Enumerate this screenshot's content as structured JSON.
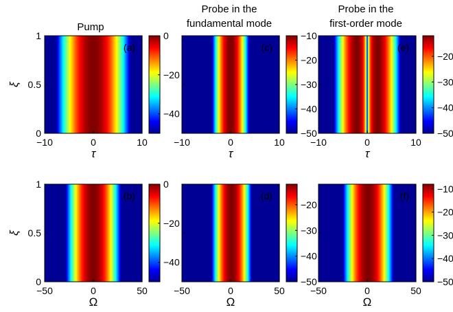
{
  "columns": [
    {
      "title": [
        "Pump"
      ]
    },
    {
      "title": [
        "Probe in the",
        "fundamental mode"
      ]
    },
    {
      "title": [
        "Probe in the",
        "first-order mode"
      ]
    }
  ],
  "chart_data": [
    {
      "id": "a",
      "type": "heatmap",
      "label": "(a)",
      "xlabel": "τ",
      "ylabel": "ξ",
      "xlim": [
        -10,
        10
      ],
      "ylim": [
        0,
        1
      ],
      "xticks": [
        -10,
        0,
        10
      ],
      "yticks": [
        0,
        0.5,
        1
      ],
      "clim": [
        -50,
        0
      ],
      "cbar_ticks": [
        0,
        -20,
        -40
      ],
      "profile": {
        "shape": "gaussian",
        "center": 0,
        "peak": 0,
        "width": 1.6
      }
    },
    {
      "id": "c",
      "type": "heatmap",
      "label": "(c)",
      "xlabel": "τ",
      "ylabel": "ξ",
      "xlim": [
        -10,
        10
      ],
      "ylim": [
        0,
        1
      ],
      "xticks": [
        -10,
        0,
        10
      ],
      "yticks": [
        0,
        0.5,
        1
      ],
      "clim": [
        -50,
        -10
      ],
      "cbar_ticks": [
        -10,
        -20,
        -30,
        -40,
        -50
      ],
      "profile": {
        "shape": "gaussian",
        "center": 0,
        "peak": -10,
        "width": 0.9
      }
    },
    {
      "id": "e",
      "type": "heatmap",
      "label": "(e)",
      "xlabel": "τ",
      "ylabel": "ξ",
      "xlim": [
        -10,
        10
      ],
      "ylim": [
        0,
        1
      ],
      "xticks": [
        -10,
        0,
        10
      ],
      "yticks": [
        0,
        0.5,
        1
      ],
      "clim": [
        -50,
        -12
      ],
      "cbar_ticks": [
        -20,
        -30,
        -40,
        -50
      ],
      "profile": {
        "shape": "first-order",
        "center": 0,
        "peak": -12,
        "width": 1.5
      }
    },
    {
      "id": "b",
      "type": "heatmap",
      "label": "(b)",
      "xlabel": "Ω",
      "ylabel": "ξ",
      "xlim": [
        -50,
        50
      ],
      "ylim": [
        0,
        1
      ],
      "xticks": [
        -50,
        0,
        50
      ],
      "yticks": [
        0,
        0.5,
        1
      ],
      "clim": [
        -50,
        0
      ],
      "cbar_ticks": [
        0,
        -20,
        -40
      ],
      "profile": {
        "shape": "gaussian",
        "center": 0,
        "peak": 0,
        "width": 6
      }
    },
    {
      "id": "d",
      "type": "heatmap",
      "label": "(d)",
      "xlabel": "Ω",
      "ylabel": "ξ",
      "xlim": [
        -50,
        50
      ],
      "ylim": [
        0,
        1
      ],
      "xticks": [
        -50,
        0,
        50
      ],
      "yticks": [
        0,
        0.5,
        1
      ],
      "clim": [
        -50,
        -12
      ],
      "cbar_ticks": [
        -20,
        -30,
        -40,
        -50
      ],
      "profile": {
        "shape": "gaussian",
        "center": 1,
        "peak": -12,
        "width": 5
      }
    },
    {
      "id": "f",
      "type": "heatmap",
      "label": "(f)",
      "xlabel": "Ω",
      "ylabel": "ξ",
      "xlim": [
        -50,
        50
      ],
      "ylim": [
        0,
        1
      ],
      "xticks": [
        -50,
        0,
        50
      ],
      "yticks": [
        0,
        0.5,
        1
      ],
      "clim": [
        -50,
        -8
      ],
      "cbar_ticks": [
        -10,
        -20,
        -30,
        -40,
        -50
      ],
      "profile": {
        "shape": "gaussian",
        "center": 1,
        "peak": -8,
        "width": 6
      }
    }
  ]
}
